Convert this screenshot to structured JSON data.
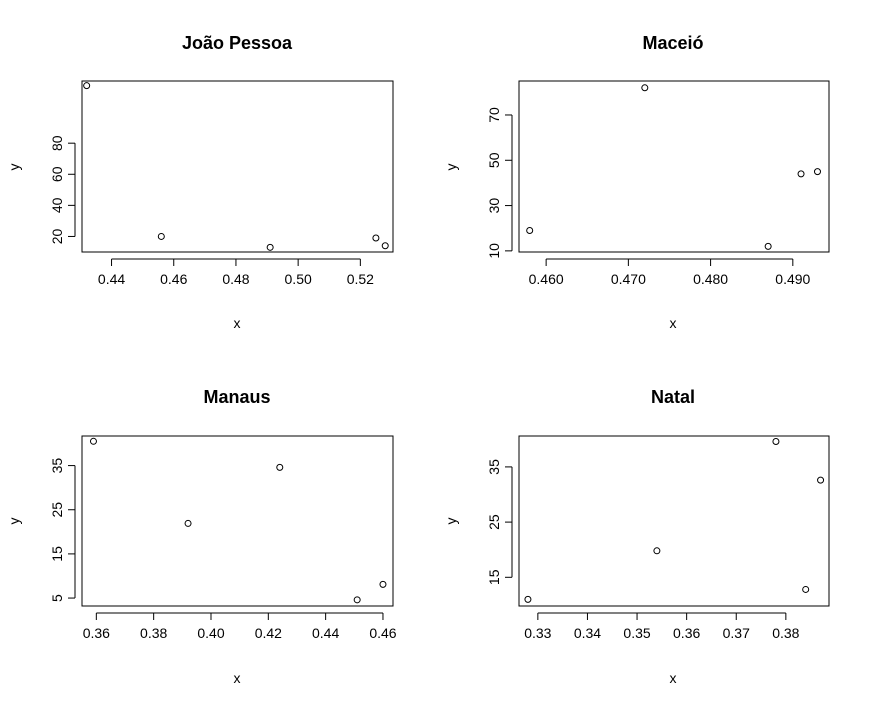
{
  "chart_data": [
    {
      "type": "scatter",
      "title": "João Pessoa",
      "xlabel": "x",
      "ylabel": "y",
      "xlim": [
        0.4305,
        0.5305
      ],
      "ylim": [
        10,
        120
      ],
      "xticks": [
        "0.44",
        "0.46",
        "0.48",
        "0.50",
        "0.52"
      ],
      "yticks": [
        "20",
        "40",
        "60",
        "80"
      ],
      "points": [
        {
          "x": 0.432,
          "y": 117
        },
        {
          "x": 0.456,
          "y": 20
        },
        {
          "x": 0.491,
          "y": 13
        },
        {
          "x": 0.525,
          "y": 19
        },
        {
          "x": 0.528,
          "y": 14
        }
      ]
    },
    {
      "type": "scatter",
      "title": "Maceió",
      "xlabel": "x",
      "ylabel": "y",
      "xlim": [
        0.4567,
        0.4944
      ],
      "ylim": [
        9.5,
        85
      ],
      "xticks": [
        "0.460",
        "0.470",
        "0.480",
        "0.490"
      ],
      "yticks": [
        "10",
        "30",
        "50",
        "70"
      ],
      "points": [
        {
          "x": 0.458,
          "y": 19
        },
        {
          "x": 0.472,
          "y": 82
        },
        {
          "x": 0.487,
          "y": 12
        },
        {
          "x": 0.491,
          "y": 44
        },
        {
          "x": 0.493,
          "y": 45
        }
      ]
    },
    {
      "type": "scatter",
      "title": "Manaus",
      "xlabel": "x",
      "ylabel": "y",
      "xlim": [
        0.355,
        0.4635
      ],
      "ylim": [
        3.2,
        41.7
      ],
      "xticks": [
        "0.36",
        "0.38",
        "0.40",
        "0.42",
        "0.44",
        "0.46"
      ],
      "yticks": [
        "5",
        "15",
        "25",
        "35"
      ],
      "points": [
        {
          "x": 0.359,
          "y": 40.5
        },
        {
          "x": 0.392,
          "y": 21.9
        },
        {
          "x": 0.424,
          "y": 34.6
        },
        {
          "x": 0.451,
          "y": 4.6
        },
        {
          "x": 0.46,
          "y": 8.1
        }
      ]
    },
    {
      "type": "scatter",
      "title": "Natal",
      "xlabel": "x",
      "ylabel": "y",
      "xlim": [
        0.3262,
        0.3887
      ],
      "ylim": [
        9.8,
        40.6
      ],
      "xticks": [
        "0.33",
        "0.34",
        "0.35",
        "0.36",
        "0.37",
        "0.38"
      ],
      "yticks": [
        "15",
        "25",
        "35"
      ],
      "points": [
        {
          "x": 0.328,
          "y": 11.0
        },
        {
          "x": 0.354,
          "y": 19.8
        },
        {
          "x": 0.378,
          "y": 39.6
        },
        {
          "x": 0.384,
          "y": 12.8
        },
        {
          "x": 0.387,
          "y": 32.6
        }
      ]
    }
  ]
}
